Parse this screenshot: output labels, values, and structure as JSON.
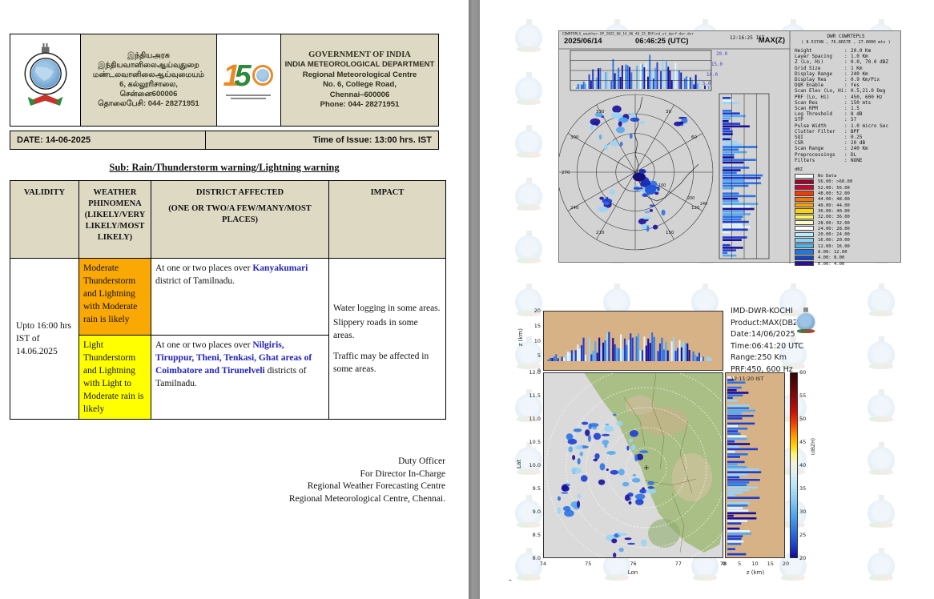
{
  "doc": {
    "header": {
      "tamil": [
        "இந்தியஅரசு",
        "இந்தியவானிலைஆய்வுதுறை",
        "மண்டலவானிலைஆய்வுமையம்",
        "6, கல்லூரிசாலை,",
        "சென்னை600006",
        "தொலைபேசி:  044- 28271951"
      ],
      "english_title": "GOVERNMENT OF INDIA",
      "english_lines": [
        "INDIA METEOROLOGICAL DEPARTMENT",
        "Regional Meteorological Centre",
        "No. 6, College Road,",
        "Chennai–600006",
        "Phone:  044- 28271951"
      ]
    },
    "date_label": "DATE: 14-06-2025",
    "time_label": "Time of Issue: 13:00 hrs. IST",
    "subject": "Sub: Rain/Thunderstorm warning/Lightning warning",
    "table": {
      "col_validity": "VALIDITY",
      "col_phenomena_1": "WEATHER PHINOMENA",
      "col_phenomena_2": "(LIKELY/VERY LIKELY/MOST LIKELY)",
      "col_district_1": "DISTRICT AFFECTED",
      "col_district_2": "(ONE OR TWO/A FEW/MANY/MOST PLACES)",
      "col_impact": "IMPACT",
      "validity": "Upto 16:00 hrs IST of 14.06.2025",
      "rows": [
        {
          "phenomena": "Moderate Thunderstorm and Lightning with Moderate rain is likely",
          "bg": "#faa804",
          "prefix": "At one or two places over ",
          "highlight": "Kanyakumari",
          "suffix": " district of Tamilnadu."
        },
        {
          "phenomena": "Light Thunderstorm and Lightning with Light to Moderate rain is likely",
          "bg": "#ffff00",
          "prefix": "At one or two places over ",
          "highlight": "Nilgiris, Tiruppur, Theni, Tenkasi, Ghat areas of Coimbatore and Tirunelveli",
          "suffix": " districts of Tamilnadu."
        }
      ],
      "impact": [
        "Water logging in some areas.",
        "Slippery roads in some areas.",
        "Traffic may be affected in some areas."
      ]
    },
    "signature": [
      "Duty Officer",
      "For Director In-Charge",
      "Regional Weather Forecasting Centre",
      "Regional Meteorological Centre, Chennai."
    ]
  },
  "radar_top": {
    "filename": "CDWRTDRLS_weather-GP_2025_06_14_06_46_25_BSFind_st_dprf.der.der",
    "date": "2025/06/14",
    "time_utc": "06:46:25 (UTC)",
    "time_ist": "12:16:25 IST",
    "product": "MAX(Z)",
    "station_title": "DWR COWRTEPLS",
    "station_coords": "( 8.5374N , 76.8657E , 27.0000 mts )",
    "height_labels": [
      "20.0",
      "15.0",
      "10.0",
      "5.0"
    ],
    "azimuth_labels": [
      "330",
      "30",
      "300",
      "60",
      "270",
      "240",
      "210",
      "150",
      "120"
    ],
    "range_labels": [
      "100",
      "200",
      "240"
    ],
    "params": [
      {
        "k": "Height",
        "v": "20.0 Km"
      },
      {
        "k": "Layer Spacing",
        "v": "1.0 Km"
      },
      {
        "k": "Z (Lo, Hi)",
        "v": "0.0, 70.0 dBZ"
      },
      {
        "k": "Grid Size",
        "v": "1 Km"
      },
      {
        "k": "Display Range",
        "v": "240 Km"
      },
      {
        "k": "Display Res",
        "v": "0.9 Km/Pix"
      },
      {
        "k": "DQR Enable",
        "v": "Yes"
      },
      {
        "k": "Scan Elev (Lo, Hi)",
        "v": "0.5,21.0 Deg"
      },
      {
        "k": "PRF (Lo, Hi)",
        "v": "450, 600 Hz"
      },
      {
        "k": "Scan Res",
        "v": "150 mts"
      },
      {
        "k": "Scan RPM",
        "v": "1.5"
      },
      {
        "k": "Log Threshold",
        "v": "8 dB"
      },
      {
        "k": "STP",
        "v": "57"
      },
      {
        "k": "Pulse Width",
        "v": "1.0 micro Sec"
      },
      {
        "k": "Clutter Filter",
        "v": "BPF"
      },
      {
        "k": "SQI",
        "v": "0.25"
      },
      {
        "k": "CSR",
        "v": "20 dB"
      },
      {
        "k": "Scan Range",
        "v": "240 Km"
      },
      {
        "k": "Preprocessings",
        "v": "DL"
      },
      {
        "k": "Filters",
        "v": "NONE"
      }
    ],
    "legend_title": "dBZ",
    "legend": [
      {
        "c": "#ffffff",
        "label": "No Data"
      },
      {
        "c": "#9f0028",
        "label": "56.00: >60.00"
      },
      {
        "c": "#d10033",
        "label": "52.00: 56.00"
      },
      {
        "c": "#ef3c00",
        "label": "48.00: 52.00"
      },
      {
        "c": "#ff7300",
        "label": "44.00: 48.00"
      },
      {
        "c": "#ffa200",
        "label": "40.00: 44.00"
      },
      {
        "c": "#ffd300",
        "label": "36.00: 40.00"
      },
      {
        "c": "#fff65c",
        "label": "32.00: 36.00"
      },
      {
        "c": "#fffbc8",
        "label": "28.00: 32.00"
      },
      {
        "c": "#ffffff",
        "label": "24.00: 28.00"
      },
      {
        "c": "#b9ecff",
        "label": "20.00: 24.00"
      },
      {
        "c": "#86d5f8",
        "label": "16.00: 20.00"
      },
      {
        "c": "#4fb4f0",
        "label": "12.00: 16.00"
      },
      {
        "c": "#1e7ae0",
        "label": "8.00: 12.00"
      },
      {
        "c": "#1446c8",
        "label": "4.00:  8.00"
      },
      {
        "c": "#2a0f9e",
        "label": "0.00:  4.00"
      }
    ]
  },
  "radar_bottom": {
    "info": [
      "IMD-DWR-KOCHI",
      "Product:MAX(DBZ)",
      "Date:14/06/2025",
      "Time:06:41:20 UTC",
      "Range:250 Km",
      "PRF:450, 600 Hz"
    ],
    "ist": "12:11:20 IST",
    "xlabel": "Lon",
    "ylabel": "Lat",
    "zlabel": "z (km)",
    "lon_ticks": [
      "74",
      "75",
      "76",
      "77",
      "78"
    ],
    "lat_ticks": [
      "12.0",
      "11.5",
      "11.0",
      "10.5",
      "10.0",
      "9.5",
      "9.0",
      "8.5",
      "8.0"
    ],
    "z_ticks_v": [
      "20",
      "15",
      "10",
      "5",
      "0"
    ],
    "z_ticks_h": [
      "0",
      "5",
      "10",
      "15",
      "20"
    ],
    "colorbar_ticks": [
      "60",
      "55",
      "50",
      "45",
      "40",
      "35",
      "30",
      "25",
      "20"
    ],
    "colorbar_label": "(dBZH)"
  },
  "page_footer_dash": "-",
  "colors": {
    "table_header_bg": "#ddd9c3",
    "warn_orange": "#faa804",
    "warn_yellow": "#ffff00",
    "district_blue": "#2222bb",
    "radar_bg_gray": "#d3d3d3",
    "radar_bg_tan": "#d7b286",
    "map_land_green": "#a9bf85"
  }
}
